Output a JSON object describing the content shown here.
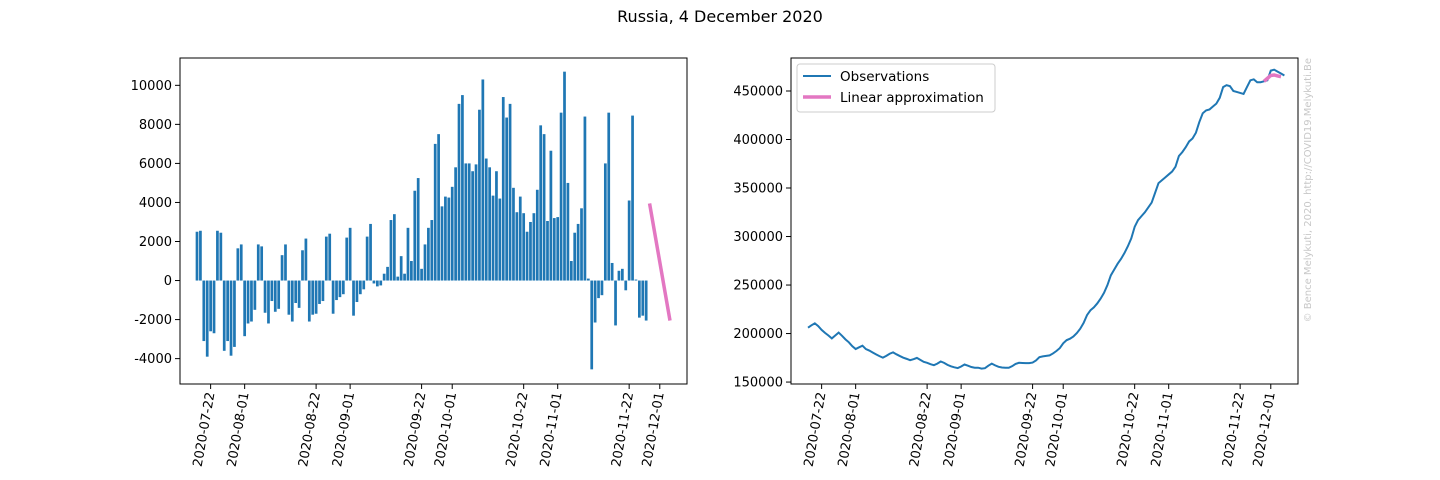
{
  "figure": {
    "title": "Russia, 4 December 2020",
    "watermark": "© Bence Melykuti, 2020. http://COVID19.Melykuti.Be"
  },
  "colors": {
    "bars": "#1f77b4",
    "observations": "#1f77b4",
    "approximation": "#e377c2"
  },
  "chart_data": [
    {
      "type": "bar",
      "title": "",
      "xlabel": "",
      "ylabel": "",
      "x_start": "2020-07-18",
      "x_end": "2020-12-04",
      "xlim": [
        "2020-07-13",
        "2020-12-09"
      ],
      "ylim": [
        -5300,
        11400
      ],
      "yticks": [
        -4000,
        -2000,
        0,
        2000,
        4000,
        6000,
        8000,
        10000
      ],
      "xticks": [
        "2020-07-22",
        "2020-08-01",
        "2020-08-22",
        "2020-09-01",
        "2020-09-22",
        "2020-10-01",
        "2020-10-22",
        "2020-11-01",
        "2020-11-22",
        "2020-12-01"
      ],
      "values": [
        2500,
        2550,
        -3100,
        -3900,
        -2600,
        -2700,
        2550,
        2450,
        -3600,
        -3100,
        -3850,
        -3400,
        1650,
        1850,
        -2850,
        -2200,
        -2100,
        -1500,
        1850,
        1750,
        -1650,
        -2200,
        -1050,
        -1600,
        -1450,
        1300,
        1850,
        -1750,
        -2100,
        -1150,
        -1400,
        1550,
        2150,
        -2100,
        -1750,
        -1700,
        -1200,
        -1050,
        2250,
        2400,
        -1700,
        -1000,
        -850,
        -700,
        2200,
        2700,
        -1800,
        -1100,
        -700,
        -450,
        2250,
        2900,
        -150,
        -300,
        -250,
        350,
        700,
        3100,
        3400,
        200,
        1250,
        350,
        2700,
        1000,
        4600,
        5250,
        600,
        1850,
        2700,
        3100,
        7000,
        7500,
        3800,
        4300,
        4250,
        4800,
        5800,
        9050,
        9500,
        6000,
        6000,
        5600,
        5950,
        8750,
        10300,
        6250,
        5800,
        4350,
        5600,
        4200,
        9400,
        8350,
        9050,
        4750,
        3500,
        4300,
        3450,
        2500,
        3000,
        3450,
        4650,
        7950,
        7500,
        3050,
        6650,
        3200,
        3250,
        8600,
        10700,
        5000,
        1000,
        2450,
        2900,
        3700,
        8400,
        100,
        -4550,
        -2150,
        -900,
        -750,
        6000,
        8600,
        900,
        -2300,
        500,
        600,
        -500,
        4100,
        8450,
        50,
        -1900,
        -1800,
        -2050
      ],
      "series": [
        {
          "name": "",
          "values": [
            3950,
            -2050
          ]
        }
      ]
    },
    {
      "type": "line",
      "title": "",
      "xlabel": "",
      "ylabel": "",
      "x_start": "2020-07-18",
      "x_end": "2020-12-04",
      "xlim": [
        "2020-07-13",
        "2020-12-09"
      ],
      "ylim": [
        148000,
        484000
      ],
      "yticks": [
        150000,
        200000,
        250000,
        300000,
        350000,
        400000,
        450000
      ],
      "xticks": [
        "2020-07-22",
        "2020-08-01",
        "2020-08-22",
        "2020-09-01",
        "2020-09-22",
        "2020-10-01",
        "2020-10-22",
        "2020-11-01",
        "2020-11-22",
        "2020-12-01"
      ],
      "legend": "upper left",
      "series": [
        {
          "name": "Observations",
          "values": [
            206000,
            208500,
            210500,
            207700,
            203800,
            200700,
            198000,
            195000,
            198000,
            201000,
            197700,
            194000,
            191000,
            187000,
            184000,
            185800,
            187500,
            184000,
            182500,
            180500,
            178500,
            176700,
            175200,
            177000,
            179200,
            180600,
            178600,
            176800,
            175100,
            173900,
            172500,
            173600,
            174900,
            172900,
            170800,
            169800,
            168400,
            167400,
            169000,
            171200,
            169800,
            167700,
            166200,
            165200,
            164400,
            166000,
            168100,
            166900,
            165500,
            164800,
            164800,
            163900,
            164300,
            166900,
            169000,
            167200,
            165700,
            165000,
            164700,
            164700,
            166400,
            168700,
            169900,
            169700,
            169500,
            169500,
            170100,
            172300,
            175700,
            176500,
            177000,
            177500,
            179500,
            182000,
            185000,
            190000,
            193200,
            194700,
            197000,
            200500,
            205000,
            211000,
            219000,
            224000,
            227000,
            231000,
            236000,
            242000,
            250000,
            260000,
            266000,
            272000,
            277000,
            283000,
            290000,
            298000,
            310000,
            317000,
            321000,
            325000,
            330000,
            335000,
            345000,
            355000,
            358000,
            361000,
            364000,
            367000,
            372000,
            383000,
            387000,
            392000,
            398000,
            401000,
            407000,
            418000,
            427000,
            430000,
            431000,
            434000,
            437000,
            443000,
            454000,
            456000,
            455000,
            450000,
            449000,
            448000,
            447000,
            454000,
            461000,
            462000,
            459000,
            459000,
            460000,
            461000,
            471000,
            472000,
            470000,
            468000,
            466000
          ]
        },
        {
          "name": "Linear approximation",
          "values": [
            460000,
            463000,
            466000,
            466500,
            465500,
            464800
          ]
        }
      ]
    }
  ]
}
